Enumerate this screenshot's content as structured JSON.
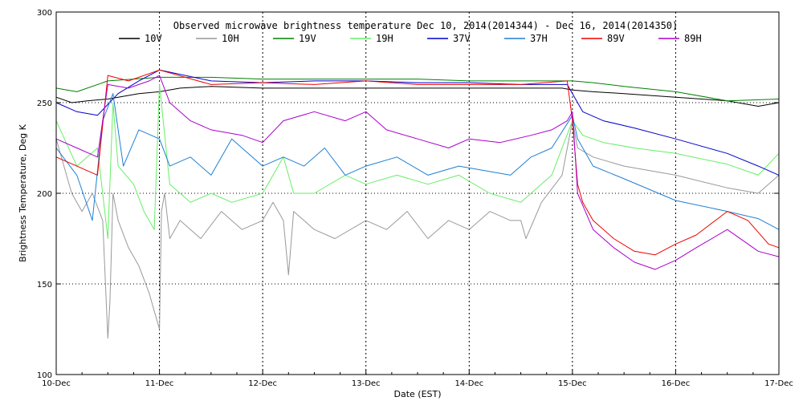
{
  "chart_data": {
    "type": "line",
    "title": "Observed microwave brightness temperature Dec 10, 2014(2014344) - Dec 16, 2014(2014350)",
    "xlabel": "Date (EST)",
    "ylabel": "Brightness Temperature, Deg K",
    "xlim": [
      0,
      7
    ],
    "ylim": [
      100,
      300
    ],
    "x_ticks": [
      "10-Dec",
      "11-Dec",
      "12-Dec",
      "13-Dec",
      "14-Dec",
      "15-Dec",
      "16-Dec",
      "17-Dec"
    ],
    "y_ticks": [
      100,
      150,
      200,
      250,
      300
    ],
    "grid": "dotted",
    "legend_position": "top",
    "series": [
      {
        "name": "10V",
        "color": "#000000",
        "x": [
          0,
          0.15,
          0.3,
          0.5,
          0.8,
          1.0,
          1.2,
          1.5,
          2.0,
          2.5,
          3.0,
          3.5,
          4.0,
          4.5,
          4.9,
          5.0,
          5.2,
          5.5,
          6.0,
          6.5,
          6.8,
          7.0
        ],
        "y": [
          253,
          250,
          251,
          252,
          255,
          256,
          258,
          259,
          258,
          258,
          258,
          258,
          258,
          258,
          258,
          257,
          256,
          255,
          253,
          251,
          248,
          250
        ]
      },
      {
        "name": "10H",
        "color": "#999999",
        "x": [
          0,
          0.15,
          0.25,
          0.35,
          0.45,
          0.5,
          0.52,
          0.55,
          0.6,
          0.7,
          0.8,
          0.9,
          0.95,
          1.0,
          1.02,
          1.05,
          1.1,
          1.2,
          1.4,
          1.6,
          1.8,
          2.0,
          2.1,
          2.2,
          2.25,
          2.3,
          2.5,
          2.7,
          3.0,
          3.2,
          3.4,
          3.6,
          3.8,
          4.0,
          4.2,
          4.4,
          4.5,
          4.55,
          4.7,
          4.9,
          5.0,
          5.05,
          5.2,
          5.5,
          6.0,
          6.5,
          6.8,
          7.0
        ],
        "y": [
          230,
          200,
          190,
          200,
          185,
          120,
          140,
          200,
          185,
          170,
          160,
          145,
          135,
          125,
          190,
          200,
          175,
          185,
          175,
          190,
          180,
          185,
          195,
          185,
          155,
          190,
          180,
          175,
          185,
          180,
          190,
          175,
          185,
          180,
          190,
          185,
          185,
          175,
          195,
          210,
          240,
          225,
          220,
          215,
          210,
          203,
          200,
          210
        ]
      },
      {
        "name": "19V",
        "color": "#008000",
        "x": [
          0,
          0.2,
          0.5,
          1.0,
          1.5,
          2.0,
          2.5,
          3.0,
          3.5,
          4.0,
          4.5,
          5.0,
          5.2,
          5.5,
          6.0,
          6.5,
          7.0
        ],
        "y": [
          258,
          256,
          262,
          264,
          264,
          263,
          263,
          263,
          263,
          262,
          262,
          262,
          261,
          259,
          256,
          251,
          252
        ]
      },
      {
        "name": "19H",
        "color": "#66ee66",
        "x": [
          0,
          0.2,
          0.4,
          0.5,
          0.55,
          0.6,
          0.75,
          0.85,
          0.95,
          1.0,
          1.1,
          1.3,
          1.5,
          1.7,
          2.0,
          2.2,
          2.3,
          2.5,
          2.8,
          3.0,
          3.3,
          3.6,
          3.9,
          4.2,
          4.5,
          4.8,
          5.0,
          5.1,
          5.3,
          5.6,
          6.0,
          6.5,
          6.8,
          7.0
        ],
        "y": [
          240,
          215,
          225,
          175,
          250,
          215,
          205,
          190,
          180,
          260,
          205,
          195,
          200,
          195,
          200,
          220,
          200,
          200,
          210,
          205,
          210,
          205,
          210,
          200,
          195,
          210,
          240,
          232,
          228,
          225,
          222,
          216,
          210,
          222
        ]
      },
      {
        "name": "37V",
        "color": "#0000cc",
        "x": [
          0,
          0.2,
          0.4,
          0.6,
          0.8,
          1.0,
          1.5,
          2.0,
          2.5,
          3.0,
          3.5,
          4.0,
          4.5,
          4.95,
          5.0,
          5.1,
          5.3,
          5.6,
          6.0,
          6.5,
          6.8,
          7.0
        ],
        "y": [
          250,
          245,
          243,
          255,
          262,
          268,
          262,
          261,
          262,
          262,
          261,
          261,
          260,
          260,
          255,
          245,
          240,
          236,
          230,
          222,
          215,
          210
        ]
      },
      {
        "name": "37H",
        "color": "#1f7fd4",
        "x": [
          0,
          0.2,
          0.35,
          0.45,
          0.55,
          0.65,
          0.8,
          1.0,
          1.1,
          1.3,
          1.5,
          1.7,
          2.0,
          2.2,
          2.4,
          2.6,
          2.8,
          3.0,
          3.3,
          3.6,
          3.9,
          4.2,
          4.4,
          4.6,
          4.8,
          5.0,
          5.05,
          5.2,
          5.5,
          6.0,
          6.5,
          6.8,
          7.0
        ],
        "y": [
          225,
          210,
          185,
          240,
          255,
          215,
          235,
          230,
          215,
          220,
          210,
          230,
          215,
          220,
          215,
          225,
          210,
          215,
          220,
          210,
          215,
          212,
          210,
          220,
          225,
          243,
          230,
          215,
          208,
          196,
          190,
          186,
          180
        ]
      },
      {
        "name": "89V",
        "color": "#ee0000",
        "x": [
          0,
          0.2,
          0.4,
          0.5,
          0.7,
          1.0,
          1.5,
          2.0,
          2.5,
          3.0,
          3.5,
          4.0,
          4.5,
          4.95,
          5.0,
          5.05,
          5.1,
          5.2,
          5.4,
          5.6,
          5.8,
          6.0,
          6.2,
          6.5,
          6.7,
          6.9,
          7.0
        ],
        "y": [
          220,
          215,
          210,
          265,
          262,
          268,
          260,
          261,
          260,
          262,
          260,
          260,
          260,
          262,
          240,
          205,
          195,
          185,
          175,
          168,
          166,
          172,
          177,
          190,
          185,
          172,
          170
        ]
      },
      {
        "name": "89H",
        "color": "#aa00cc",
        "x": [
          0,
          0.2,
          0.4,
          0.5,
          0.7,
          0.9,
          1.0,
          1.1,
          1.3,
          1.5,
          1.8,
          2.0,
          2.2,
          2.5,
          2.8,
          3.0,
          3.2,
          3.5,
          3.8,
          4.0,
          4.3,
          4.6,
          4.8,
          4.95,
          5.0,
          5.05,
          5.2,
          5.4,
          5.6,
          5.8,
          6.0,
          6.2,
          6.5,
          6.8,
          7.0
        ],
        "y": [
          230,
          225,
          220,
          260,
          258,
          262,
          265,
          250,
          240,
          235,
          232,
          228,
          240,
          245,
          240,
          245,
          235,
          230,
          225,
          230,
          228,
          232,
          235,
          240,
          245,
          200,
          180,
          170,
          162,
          158,
          163,
          170,
          180,
          168,
          165
        ]
      }
    ]
  }
}
